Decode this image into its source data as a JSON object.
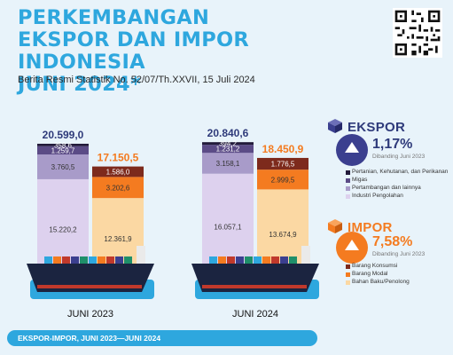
{
  "header": {
    "title_lines": [
      "PERKEMBANGAN",
      "EKSPOR DAN IMPOR INDONESIA",
      "JUNI 2024*"
    ],
    "subtitle": "Berita Resmi Statistik No. 52/07/Th.XXVII, 15 Juli 2024"
  },
  "ekspor": {
    "label": "EKSPOR",
    "change": "1,17%",
    "note": "Dibanding Juni 2023",
    "color": "#3b3f8f"
  },
  "impor": {
    "label": "IMPOR",
    "change": "7,58%",
    "note": "Dibanding Juni 2023",
    "color": "#f47b20"
  },
  "footer": {
    "text": "EKSPOR-IMPOR, JUNI 2023—JUNI 2024"
  },
  "chart_data": {
    "type": "bar",
    "stacked": true,
    "categories": [
      "JUNI 2023",
      "JUNI 2024"
    ],
    "totals": {
      "ekspor": [
        "20.599,0",
        "20.840,6"
      ],
      "impor": [
        "17.150,5",
        "18.450,9"
      ]
    },
    "ekspor_series": [
      {
        "name": "Pertanian, Kehutanan, dan Perikanan",
        "values": [
          358.6,
          394.2
        ],
        "labels": [
          "358,6",
          "394,2"
        ],
        "color": "#221a3a"
      },
      {
        "name": "Migas",
        "values": [
          1259.7,
          1231.2
        ],
        "labels": [
          "1.259,7",
          "1.231,2"
        ],
        "color": "#5b4b86"
      },
      {
        "name": "Pertambangan dan lainnya",
        "values": [
          3760.5,
          3158.1
        ],
        "labels": [
          "3.760,5",
          "3.158,1"
        ],
        "color": "#a89bc9"
      },
      {
        "name": "Industri Pengolahan",
        "values": [
          15220.2,
          16057.1
        ],
        "labels": [
          "15.220,2",
          "16.057,1"
        ],
        "color": "#ddd1ee"
      }
    ],
    "impor_series": [
      {
        "name": "Barang Konsumsi",
        "values": [
          1586.0,
          1776.5
        ],
        "labels": [
          "1.586,0",
          "1.776,5"
        ],
        "color": "#7d2a1c"
      },
      {
        "name": "Barang Modal",
        "values": [
          3202.6,
          2999.5
        ],
        "labels": [
          "3.202,6",
          "2.999,5"
        ],
        "color": "#f47b20"
      },
      {
        "name": "Bahan Baku/Penolong",
        "values": [
          12361.9,
          13674.9
        ],
        "labels": [
          "12.361,9",
          "13.674,9"
        ],
        "color": "#fbd8a3"
      }
    ]
  }
}
